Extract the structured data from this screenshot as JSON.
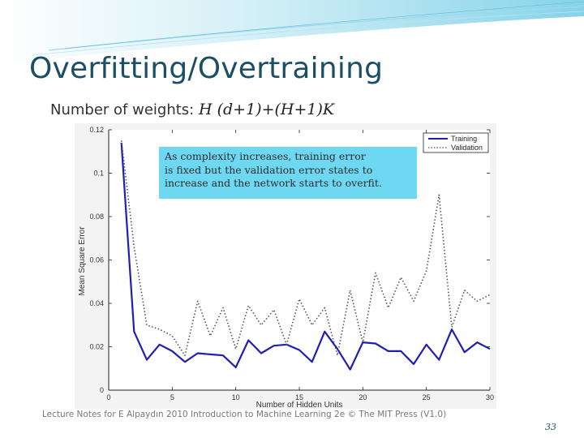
{
  "slide": {
    "title": "Overfitting/Overtraining",
    "subtitle_prefix": "Number of weights:",
    "formula": "H (d+1)+(H+1)K",
    "callout_lines": [
      "As complexity increases, training error",
      "is fixed but the validation error states to",
      "increase and the network starts to overfit."
    ],
    "footer": "Lecture Notes for E Alpaydın 2010 Introduction to Machine Learning 2e © The MIT Press (V1.0)",
    "page_number": "33",
    "colors": {
      "title": "#1d4f63",
      "training": "#1f1fb4",
      "validation": "#555555",
      "callout": "#6ed8f2"
    }
  },
  "chart_data": {
    "type": "line",
    "xlabel": "Number of Hidden Units",
    "ylabel": "Mean Square Error",
    "xlim": [
      0,
      30
    ],
    "ylim": [
      0,
      0.12
    ],
    "x_ticks": [
      "0",
      "5",
      "10",
      "15",
      "20",
      "25",
      "30"
    ],
    "y_ticks": [
      "0",
      "0.02",
      "0.04",
      "0.06",
      "0.08",
      "0.1",
      "0.12"
    ],
    "legend_position": "top-right",
    "series": [
      {
        "name": "Training",
        "style": "solid",
        "x": [
          1,
          2,
          3,
          4,
          5,
          6,
          7,
          8,
          9,
          10,
          11,
          12,
          13,
          14,
          15,
          16,
          17,
          18,
          19,
          20,
          21,
          22,
          23,
          24,
          25,
          26,
          27,
          28,
          29,
          30
        ],
        "values": [
          0.114,
          0.027,
          0.014,
          0.021,
          0.018,
          0.013,
          0.017,
          0.0165,
          0.016,
          0.0105,
          0.023,
          0.017,
          0.0205,
          0.021,
          0.0185,
          0.013,
          0.027,
          0.019,
          0.0095,
          0.022,
          0.0215,
          0.018,
          0.018,
          0.012,
          0.021,
          0.014,
          0.028,
          0.0175,
          0.022,
          0.019
        ]
      },
      {
        "name": "Validation",
        "style": "dotted",
        "x": [
          1,
          2,
          3,
          4,
          5,
          6,
          7,
          8,
          9,
          10,
          11,
          12,
          13,
          14,
          15,
          16,
          17,
          18,
          19,
          20,
          21,
          22,
          23,
          24,
          25,
          26,
          27,
          28,
          29,
          30
        ],
        "values": [
          0.115,
          0.066,
          0.03,
          0.028,
          0.025,
          0.016,
          0.041,
          0.025,
          0.038,
          0.019,
          0.039,
          0.03,
          0.037,
          0.021,
          0.042,
          0.03,
          0.038,
          0.016,
          0.046,
          0.022,
          0.054,
          0.038,
          0.052,
          0.041,
          0.055,
          0.09,
          0.029,
          0.046,
          0.041,
          0.044
        ]
      }
    ]
  }
}
